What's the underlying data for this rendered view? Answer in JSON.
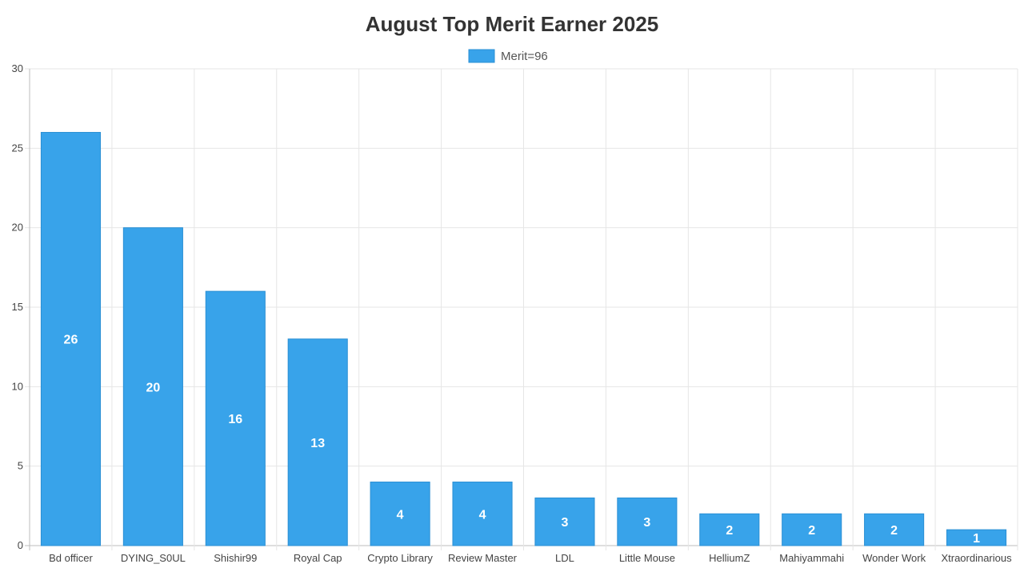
{
  "chart_data": {
    "type": "bar",
    "title": "August Top Merit Earner 2025",
    "xlabel": "",
    "ylabel": "",
    "categories": [
      "Bd officer",
      "DYING_S0UL",
      "Shishir99",
      "Royal Cap",
      "Crypto Library",
      "Review Master",
      "LDL",
      "Little Mouse",
      "HelliumZ",
      "Mahiyammahi",
      "Wonder Work",
      "Xtraordinarious"
    ],
    "series": [
      {
        "name": "Merit=96",
        "values": [
          26,
          20,
          16,
          13,
          4,
          4,
          3,
          3,
          2,
          2,
          2,
          1
        ]
      }
    ],
    "ylim": [
      0,
      30
    ],
    "yticks": [
      0,
      5,
      10,
      15,
      20,
      25,
      30
    ],
    "grid": true,
    "legend": "top-center",
    "data_labels": true,
    "colors": {
      "bar_fill": "#38a3ea",
      "bar_border": "#2a8fd4",
      "label": "#ffffff"
    }
  }
}
